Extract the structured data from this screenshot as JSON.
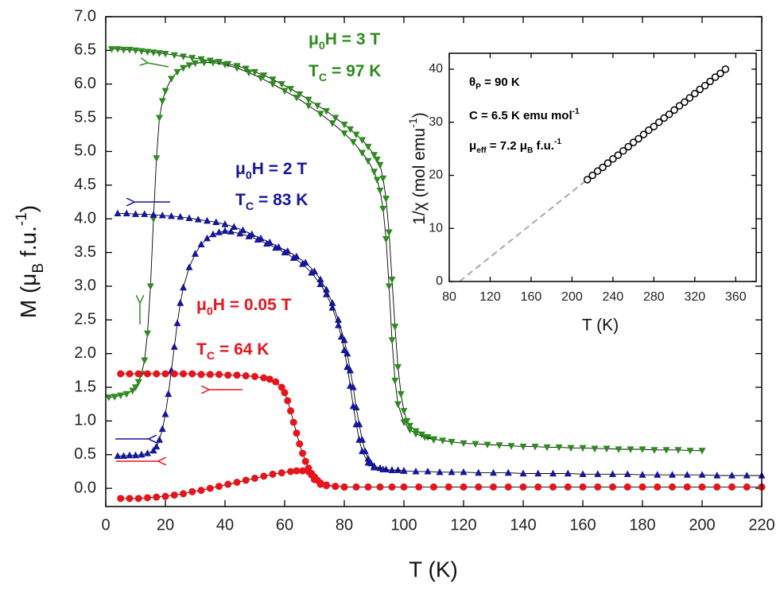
{
  "chart_data": [
    {
      "type": "line",
      "xlabel": "T (K)",
      "ylabel": [
        {
          "text": "M ("
        },
        {
          "text": "μ"
        },
        {
          "sub": "B"
        },
        {
          "text": " f.u."
        },
        {
          "sup": "-1"
        },
        {
          "text": ")"
        }
      ],
      "xlim": [
        0,
        220
      ],
      "ylim": [
        -0.27,
        7.0
      ],
      "xticks": [
        0,
        20,
        40,
        60,
        80,
        100,
        120,
        140,
        160,
        180,
        200,
        220
      ],
      "yticks": [
        {
          "value": 0,
          "label": "0.0"
        },
        0.5,
        {
          "value": 1,
          "label": "1.0"
        },
        1.5,
        {
          "value": 2,
          "label": "2.0"
        },
        2.5,
        {
          "value": 3,
          "label": "3.0"
        },
        3.5,
        {
          "value": 4,
          "label": "4.0"
        },
        4.5,
        {
          "value": 5,
          "label": "5.0"
        },
        5.5,
        {
          "value": 6,
          "label": "6.0"
        },
        6.5,
        {
          "value": 7,
          "label": "7.0"
        }
      ],
      "annotations": [
        {
          "color": "#2e8b1f",
          "text": [
            {
              "text": "μ"
            },
            {
              "sub": "0"
            },
            {
              "text": "H = 3 T"
            }
          ]
        },
        {
          "color": "#2e8b1f",
          "text": [
            {
              "text": "T"
            },
            {
              "sub": "C"
            },
            {
              "text": " = 97 K"
            }
          ]
        },
        {
          "color": "#1515a0",
          "text": [
            {
              "text": "μ"
            },
            {
              "sub": "0"
            },
            {
              "text": "H = 2 T"
            }
          ]
        },
        {
          "color": "#1515a0",
          "text": [
            {
              "text": "T"
            },
            {
              "sub": "C"
            },
            {
              "text": " = 83 K"
            }
          ]
        },
        {
          "color": "#e8141b",
          "text": [
            {
              "text": "μ"
            },
            {
              "sub": "0"
            },
            {
              "text": "H = 0.05 T"
            }
          ]
        },
        {
          "color": "#e8141b",
          "text": [
            {
              "text": "T"
            },
            {
              "sub": "C"
            },
            {
              "text": " = 64 K"
            }
          ]
        }
      ],
      "series": [
        {
          "color": "#2e8b1f",
          "marker": "triangle-down",
          "line": "solid",
          "x": [
            2,
            4,
            6,
            8,
            10,
            12,
            14,
            16,
            18,
            20,
            23,
            26,
            29,
            32,
            35,
            38,
            41,
            44,
            47,
            50,
            53,
            56,
            59,
            62,
            65,
            68,
            71,
            74,
            77,
            80,
            82,
            84,
            86,
            88,
            90,
            91,
            92,
            93,
            94,
            95,
            96,
            97,
            98,
            99,
            100,
            101,
            102,
            104,
            106,
            108,
            110,
            113,
            116,
            120,
            124,
            128,
            132,
            136,
            140,
            144,
            148,
            152,
            156,
            160,
            164,
            168,
            172,
            176,
            180,
            184,
            188,
            192,
            196,
            200
          ],
          "values": [
            6.52,
            6.52,
            6.51,
            6.51,
            6.5,
            6.49,
            6.48,
            6.47,
            6.46,
            6.45,
            6.43,
            6.41,
            6.39,
            6.37,
            6.35,
            6.33,
            6.3,
            6.27,
            6.23,
            6.18,
            6.13,
            6.07,
            6.0,
            5.93,
            5.85,
            5.77,
            5.68,
            5.6,
            5.5,
            5.4,
            5.33,
            5.25,
            5.17,
            5.07,
            4.95,
            4.88,
            4.8,
            4.6,
            4.3,
            3.8,
            3.1,
            2.4,
            1.8,
            1.4,
            1.15,
            1.0,
            0.93,
            0.85,
            0.8,
            0.76,
            0.73,
            0.71,
            0.69,
            0.67,
            0.66,
            0.65,
            0.64,
            0.63,
            0.62,
            0.62,
            0.61,
            0.61,
            0.6,
            0.6,
            0.59,
            0.59,
            0.58,
            0.58,
            0.58,
            0.57,
            0.57,
            0.57,
            0.56,
            0.56
          ]
        },
        {
          "color": "#2e8b1f",
          "marker": "triangle-down",
          "line": "solid",
          "x": [
            1,
            3,
            5,
            7,
            9,
            10,
            11,
            12,
            13,
            14,
            15,
            16,
            17,
            18,
            19,
            20,
            22,
            24,
            26,
            28,
            30,
            33,
            36,
            40,
            44,
            48,
            52,
            56,
            60,
            64,
            68,
            72,
            76,
            80,
            83,
            86,
            88,
            90,
            91,
            92,
            93,
            94,
            95,
            96,
            97,
            98,
            100,
            102,
            104,
            107,
            110
          ],
          "values": [
            1.35,
            1.36,
            1.38,
            1.4,
            1.45,
            1.5,
            1.58,
            1.7,
            1.9,
            2.3,
            3.0,
            4.0,
            4.9,
            5.5,
            5.75,
            5.9,
            6.08,
            6.18,
            6.24,
            6.28,
            6.31,
            6.32,
            6.32,
            6.29,
            6.24,
            6.17,
            6.09,
            6.0,
            5.9,
            5.8,
            5.68,
            5.56,
            5.42,
            5.27,
            5.14,
            4.98,
            4.86,
            4.7,
            4.58,
            4.42,
            4.15,
            3.7,
            3.0,
            2.2,
            1.6,
            1.25,
            0.98,
            0.87,
            0.81,
            0.76,
            0.72
          ]
        },
        {
          "color": "#1515a0",
          "marker": "triangle-up",
          "line": "solid",
          "x": [
            4,
            7,
            10,
            13,
            16,
            19,
            22,
            25,
            28,
            31,
            34,
            37,
            40,
            43,
            46,
            49,
            52,
            55,
            58,
            61,
            64,
            67,
            70,
            72,
            74,
            76,
            78,
            80,
            81,
            82,
            83,
            84,
            85,
            86,
            87,
            88,
            89,
            90,
            92,
            94,
            96,
            98,
            100,
            104,
            108,
            112,
            116,
            120,
            125,
            130,
            135,
            140,
            145,
            150,
            155,
            160,
            165,
            170,
            175,
            180,
            185,
            190,
            195,
            200,
            205,
            210,
            215,
            220
          ],
          "values": [
            4.08,
            4.08,
            4.07,
            4.07,
            4.06,
            4.05,
            4.04,
            4.03,
            4.01,
            3.99,
            3.97,
            3.95,
            3.92,
            3.88,
            3.83,
            3.77,
            3.71,
            3.65,
            3.58,
            3.52,
            3.44,
            3.35,
            3.22,
            3.1,
            2.95,
            2.75,
            2.5,
            2.2,
            2.0,
            1.75,
            1.5,
            1.2,
            0.95,
            0.72,
            0.55,
            0.44,
            0.37,
            0.33,
            0.3,
            0.28,
            0.27,
            0.27,
            0.26,
            0.25,
            0.25,
            0.24,
            0.24,
            0.24,
            0.23,
            0.23,
            0.23,
            0.22,
            0.22,
            0.22,
            0.22,
            0.21,
            0.21,
            0.21,
            0.21,
            0.2,
            0.2,
            0.2,
            0.2,
            0.2,
            0.19,
            0.19,
            0.19,
            0.19
          ]
        },
        {
          "color": "#1515a0",
          "marker": "triangle-up",
          "line": "solid",
          "x": [
            4,
            6,
            8,
            10,
            12,
            14,
            16,
            17,
            18,
            19,
            20,
            21,
            22,
            23,
            24,
            25,
            26,
            28,
            30,
            32,
            34,
            36,
            38,
            40,
            42,
            45,
            48,
            51,
            54,
            57,
            60,
            63,
            66,
            69,
            72,
            74,
            76,
            78,
            79,
            80,
            81,
            82,
            83,
            84,
            85,
            86,
            88,
            90,
            93,
            96,
            100
          ],
          "values": [
            0.48,
            0.48,
            0.49,
            0.49,
            0.5,
            0.52,
            0.56,
            0.62,
            0.72,
            0.88,
            1.1,
            1.4,
            1.75,
            2.1,
            2.45,
            2.75,
            2.98,
            3.28,
            3.48,
            3.62,
            3.71,
            3.77,
            3.8,
            3.82,
            3.81,
            3.78,
            3.74,
            3.69,
            3.63,
            3.57,
            3.5,
            3.42,
            3.33,
            3.2,
            3.03,
            2.88,
            2.68,
            2.42,
            2.25,
            2.05,
            1.8,
            1.52,
            1.22,
            0.95,
            0.72,
            0.55,
            0.38,
            0.31,
            0.28,
            0.27,
            0.26
          ]
        },
        {
          "color": "#e8141b",
          "marker": "circle",
          "line": "solid",
          "x": [
            5,
            8,
            11,
            14,
            17,
            20,
            23,
            26,
            29,
            32,
            35,
            38,
            41,
            44,
            47,
            50,
            53,
            55,
            57,
            59,
            60,
            61,
            62,
            63,
            64,
            65,
            66,
            67,
            68,
            69,
            70,
            72,
            74,
            77,
            80,
            84,
            88,
            92,
            96,
            100,
            105,
            110,
            115,
            120,
            125,
            130,
            135,
            140,
            145,
            150,
            155,
            160,
            165,
            170,
            175,
            180,
            185,
            190,
            195,
            200,
            205,
            210,
            215,
            220
          ],
          "values": [
            1.7,
            1.7,
            1.7,
            1.7,
            1.7,
            1.7,
            1.7,
            1.7,
            1.7,
            1.69,
            1.69,
            1.69,
            1.68,
            1.68,
            1.67,
            1.66,
            1.64,
            1.62,
            1.58,
            1.5,
            1.42,
            1.3,
            1.15,
            0.98,
            0.82,
            0.66,
            0.52,
            0.4,
            0.3,
            0.2,
            0.13,
            0.06,
            0.04,
            0.03,
            0.02,
            0.02,
            0.02,
            0.02,
            0.02,
            0.02,
            0.02,
            0.02,
            0.02,
            0.02,
            0.02,
            0.02,
            0.02,
            0.02,
            0.02,
            0.02,
            0.02,
            0.02,
            0.02,
            0.02,
            0.02,
            0.02,
            0.02,
            0.02,
            0.02,
            0.02,
            0.02,
            0.02,
            0.02,
            0.02
          ]
        },
        {
          "color": "#e8141b",
          "marker": "circle",
          "line": "solid",
          "x": [
            5,
            8,
            11,
            14,
            17,
            20,
            23,
            26,
            29,
            32,
            35,
            38,
            41,
            44,
            47,
            50,
            53,
            56,
            59,
            62,
            64,
            66,
            68,
            69,
            70,
            71,
            72,
            74,
            77,
            80
          ],
          "values": [
            -0.15,
            -0.15,
            -0.15,
            -0.14,
            -0.13,
            -0.12,
            -0.1,
            -0.08,
            -0.05,
            -0.03,
            0.0,
            0.03,
            0.06,
            0.09,
            0.12,
            0.15,
            0.18,
            0.21,
            0.23,
            0.25,
            0.26,
            0.26,
            0.25,
            0.22,
            0.17,
            0.12,
            0.08,
            0.05,
            0.03,
            0.02
          ]
        }
      ]
    },
    {
      "type": "scatter",
      "xlabel": "T (K)",
      "ylabel": [
        {
          "text": "1/χ (mol emu"
        },
        {
          "sup": "-1"
        },
        {
          "text": ")"
        }
      ],
      "xlim": [
        80,
        380
      ],
      "ylim": [
        0,
        43
      ],
      "xticks": [
        80,
        120,
        160,
        200,
        240,
        280,
        320,
        360
      ],
      "yticks": [
        0,
        10,
        20,
        30,
        40
      ],
      "annotations": [
        {
          "color": "#000000",
          "text": [
            {
              "text": "θ"
            },
            {
              "sub": "P"
            },
            {
              "text": " = 90 K"
            }
          ]
        },
        {
          "color": "#000000",
          "text": [
            {
              "text": "C = 6.5 K emu mol"
            },
            {
              "sup": "-1"
            }
          ]
        },
        {
          "color": "#000000",
          "text": [
            {
              "text": "μ"
            },
            {
              "sub": "eff"
            },
            {
              "text": " = 7.2 μ"
            },
            {
              "sub": "B"
            },
            {
              "text": " f.u."
            },
            {
              "sup": "-1"
            }
          ]
        }
      ],
      "series": [
        {
          "color": "#aaaaaa",
          "marker": null,
          "line": "dashed",
          "x": [
            90,
            350
          ],
          "values": [
            0,
            40
          ]
        },
        {
          "color": "#000000",
          "marker": "open-circle",
          "line": null,
          "x": [
            215,
            220,
            225,
            230,
            235,
            240,
            245,
            250,
            255,
            260,
            265,
            270,
            275,
            280,
            285,
            290,
            295,
            300,
            305,
            310,
            315,
            320,
            325,
            330,
            335,
            340,
            345,
            350
          ],
          "values": [
            19.2,
            20.0,
            20.8,
            21.5,
            22.3,
            23.1,
            23.8,
            24.6,
            25.4,
            26.2,
            26.9,
            27.7,
            28.5,
            29.2,
            30.0,
            30.8,
            31.5,
            32.3,
            33.1,
            33.8,
            34.6,
            35.4,
            36.2,
            36.9,
            37.7,
            38.5,
            39.2,
            40.0
          ]
        }
      ]
    }
  ]
}
